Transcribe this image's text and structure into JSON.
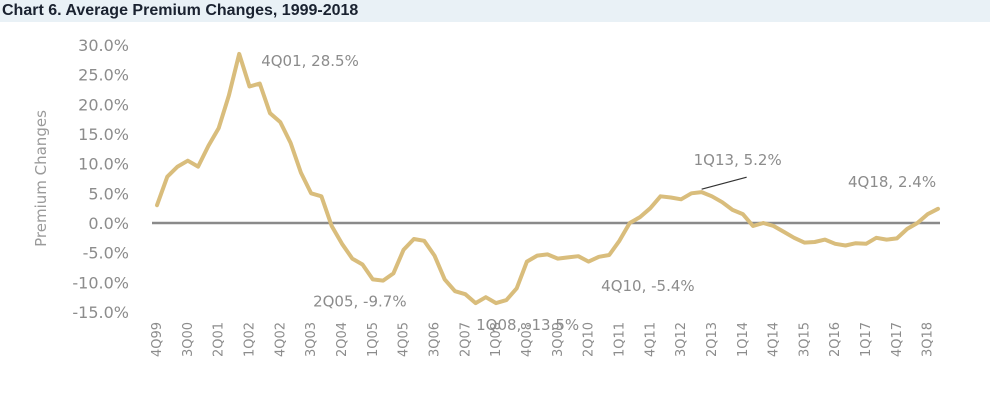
{
  "chart_data": {
    "type": "line",
    "title": "Chart 6. Average Premium Changes, 1999-2018",
    "xlabel": "",
    "ylabel": "Premium Changes",
    "ylim": [
      -15,
      30
    ],
    "yticks": [
      "30.0%",
      "25.0%",
      "20.0%",
      "15.0%",
      "10.0%",
      "5.0%",
      "0.0%",
      "-5.0%",
      "-10.0%",
      "-15.0%"
    ],
    "ytick_values": [
      30,
      25,
      20,
      15,
      10,
      5,
      0,
      -5,
      -10,
      -15
    ],
    "xtick_labels": [
      "4Q99",
      "3Q00",
      "2Q01",
      "1Q02",
      "4Q02",
      "3Q03",
      "2Q04",
      "1Q05",
      "4Q05",
      "3Q06",
      "2Q07",
      "1Q08",
      "4Q08",
      "3Q09",
      "2Q10",
      "1Q11",
      "4Q11",
      "3Q12",
      "2Q13",
      "1Q14",
      "4Q14",
      "3Q15",
      "2Q16",
      "1Q17",
      "4Q17",
      "3Q18"
    ],
    "x": [
      "4Q99",
      "1Q00",
      "2Q00",
      "3Q00",
      "4Q00",
      "1Q01",
      "2Q01",
      "3Q01",
      "4Q01",
      "1Q02",
      "2Q02",
      "3Q02",
      "4Q02",
      "1Q03",
      "2Q03",
      "3Q03",
      "4Q03",
      "1Q04",
      "2Q04",
      "3Q04",
      "4Q04",
      "1Q05",
      "2Q05",
      "3Q05",
      "4Q05",
      "1Q06",
      "2Q06",
      "3Q06",
      "4Q06",
      "1Q07",
      "2Q07",
      "3Q07",
      "4Q07",
      "1Q08",
      "2Q08",
      "3Q08",
      "4Q08",
      "1Q09",
      "2Q09",
      "3Q09",
      "4Q09",
      "1Q10",
      "2Q10",
      "3Q10",
      "4Q10",
      "1Q11",
      "2Q11",
      "3Q11",
      "4Q11",
      "1Q12",
      "2Q12",
      "3Q12",
      "4Q12",
      "1Q13",
      "2Q13",
      "3Q13",
      "4Q13",
      "1Q14",
      "2Q14",
      "3Q14",
      "4Q14",
      "1Q15",
      "2Q15",
      "3Q15",
      "4Q15",
      "1Q16",
      "2Q16",
      "3Q16",
      "4Q16",
      "1Q17",
      "2Q17",
      "3Q17",
      "4Q17",
      "1Q18",
      "2Q18",
      "3Q18",
      "4Q18"
    ],
    "series": [
      {
        "color": "#d9bd7c",
        "values": [
          3.0,
          7.8,
          9.5,
          10.5,
          9.5,
          13.0,
          16.0,
          21.5,
          28.5,
          23.0,
          23.5,
          18.5,
          17.0,
          13.5,
          8.5,
          5.0,
          4.5,
          -0.5,
          -3.5,
          -6.0,
          -7.0,
          -9.5,
          -9.7,
          -8.5,
          -4.5,
          -2.7,
          -3.0,
          -5.5,
          -9.5,
          -11.5,
          -12.0,
          -13.5,
          -12.5,
          -13.5,
          -13.0,
          -11.0,
          -6.5,
          -5.5,
          -5.3,
          -6.0,
          -5.8,
          -5.6,
          -6.5,
          -5.7,
          -5.4,
          -3.0,
          0.0,
          1.0,
          2.5,
          4.5,
          4.3,
          4.0,
          5.0,
          5.2,
          4.5,
          3.5,
          2.2,
          1.5,
          -0.5,
          0.0,
          -0.5,
          -1.5,
          -2.5,
          -3.3,
          -3.2,
          -2.8,
          -3.5,
          -3.8,
          -3.4,
          -3.5,
          -2.5,
          -2.8,
          -2.6,
          -1.0,
          0.0,
          1.5,
          2.4
        ]
      }
    ],
    "annotations": [
      {
        "text": "4Q01, 28.5%",
        "x": "4Q01",
        "y": 28.5
      },
      {
        "text": "1Q13, 5.2%",
        "x": "1Q13",
        "y": 5.2
      },
      {
        "text": "4Q18, 2.4%",
        "x": "4Q18",
        "y": 2.4
      },
      {
        "text": "2Q05, -9.7%",
        "x": "2Q05",
        "y": -9.7
      },
      {
        "text": "4Q10, -5.4%",
        "x": "4Q10",
        "y": -5.4
      },
      {
        "text": "1Q08, -13.5%",
        "x": "1Q08",
        "y": -13.5
      }
    ],
    "grid": false,
    "legend": "none",
    "zero_line_color": "#8a8a8a"
  }
}
